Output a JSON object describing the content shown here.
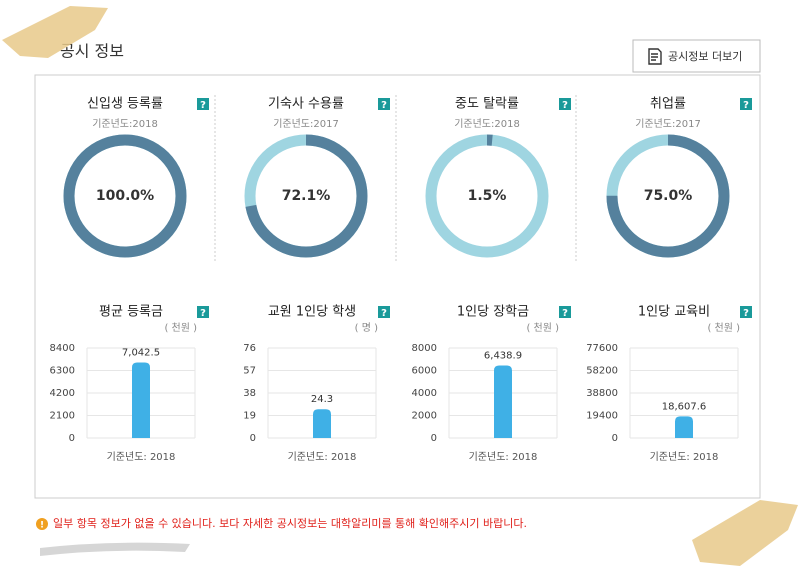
{
  "header": {
    "title": "공시 정보",
    "button": "공시정보 더보기"
  },
  "help": "?",
  "chart_data": [
    {
      "type": "donut",
      "title": "신입생 등록률",
      "subtitle": "기준년도:2018",
      "values": [
        100.0
      ],
      "value_labels": [
        "100.0%"
      ],
      "color": "#55819d",
      "track_color": "#9fd5e1"
    },
    {
      "type": "donut",
      "title": "기숙사 수용률",
      "subtitle": "기준년도:2017",
      "values": [
        72.1
      ],
      "value_labels": [
        "72.1%"
      ],
      "color": "#55819d",
      "track_color": "#9fd5e1"
    },
    {
      "type": "donut",
      "title": "중도 탈락률",
      "subtitle": "기준년도:2018",
      "values": [
        1.5
      ],
      "value_labels": [
        "1.5%"
      ],
      "color": "#55819d",
      "track_color": "#9fd5e1"
    },
    {
      "type": "donut",
      "title": "취업률",
      "subtitle": "기준년도:2017",
      "values": [
        75.0
      ],
      "value_labels": [
        "75.0%"
      ],
      "color": "#55819d",
      "track_color": "#9fd5e1"
    },
    {
      "type": "bar",
      "title": "평균 등록금",
      "unit_label": "( 천원 )",
      "values": [
        7042.5
      ],
      "value_labels": [
        "7,042.5"
      ],
      "ylim": [
        0,
        8400
      ],
      "yticks": [
        0,
        2100,
        4200,
        6300,
        8400
      ],
      "color": "#3fb0e6",
      "footnote": "기준년도: 2018"
    },
    {
      "type": "bar",
      "title": "교원 1인당 학생",
      "unit_label": "( 명 )",
      "values": [
        24.3
      ],
      "ylim": [
        0,
        76
      ],
      "yticks": [
        0,
        19,
        38,
        57,
        76
      ],
      "color": "#3fb0e6",
      "footnote": "기준년도: 2018"
    },
    {
      "type": "bar",
      "title": "1인당 장학금",
      "unit_label": "( 천원 )",
      "values": [
        6438.9
      ],
      "value_labels": [
        "6,438.9"
      ],
      "ylim": [
        0,
        8000
      ],
      "yticks": [
        0,
        2000,
        4000,
        6000,
        8000
      ],
      "color": "#3fb0e6",
      "footnote": "기준년도: 2018"
    },
    {
      "type": "bar",
      "title": "1인당 교육비",
      "unit_label": "( 천원 )",
      "values": [
        18607.6
      ],
      "value_labels": [
        "18,607.6"
      ],
      "ylim": [
        0,
        77600
      ],
      "yticks": [
        0,
        19400,
        38800,
        58200,
        77600
      ],
      "color": "#3fb0e6",
      "footnote": "기준년도: 2018"
    }
  ],
  "note": "일부 항목 정보가 없을 수 있습니다. 보다 자세한 공시정보는 대학알리미를 통해 확인해주시기 바랍니다."
}
